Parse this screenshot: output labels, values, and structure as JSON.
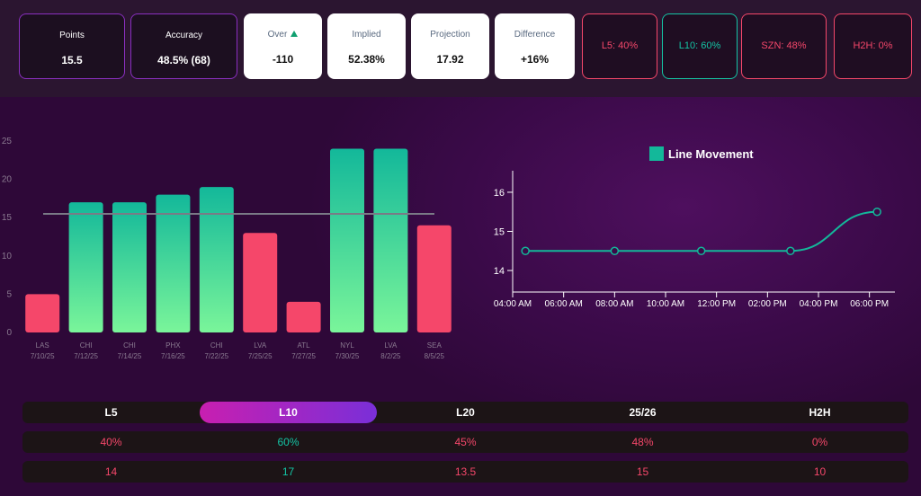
{
  "cards": [
    {
      "label": "Points",
      "value": "15.5",
      "style": "dark"
    },
    {
      "label": "Accuracy",
      "value": "48.5% (68)",
      "style": "dark"
    },
    {
      "label": "Over",
      "value": "-110",
      "style": "light"
    },
    {
      "label": "Implied",
      "value": "52.38%",
      "style": "light"
    },
    {
      "label": "Projection",
      "value": "17.92",
      "style": "light"
    },
    {
      "label": "Difference",
      "value": "+16%",
      "style": "light"
    },
    {
      "label": "L5: 40%",
      "color": "#f5476a"
    },
    {
      "label": "L10: 60%",
      "color": "#14c4a4"
    },
    {
      "label": "SZN: 48%",
      "color": "#f5476a"
    },
    {
      "label": "H2H: 0%",
      "color": "#f5476a"
    }
  ],
  "chart_data": [
    {
      "type": "bar",
      "categories": [
        "LAS",
        "CHI",
        "CHI",
        "PHX",
        "CHI",
        "LVA",
        "ATL",
        "NYL",
        "LVA",
        "SEA"
      ],
      "dates": [
        "7/10/25",
        "7/12/25",
        "7/14/25",
        "7/16/25",
        "7/22/25",
        "7/25/25",
        "7/27/25",
        "7/30/25",
        "8/2/25",
        "8/5/25"
      ],
      "values": [
        5,
        17,
        17,
        18,
        19,
        13,
        4,
        24,
        24,
        14
      ],
      "reference_line": 15.5,
      "color_over": "#13b89a",
      "color_under": "#f5476a",
      "ylim": [
        0,
        25
      ],
      "yticks": [
        0,
        5,
        10,
        15,
        20,
        25
      ]
    },
    {
      "type": "line",
      "series": [
        {
          "name": "Line Movement",
          "color": "#13b89a",
          "x": [
            4.5,
            8,
            11.4,
            14.9,
            18.3
          ],
          "values": [
            14.5,
            14.5,
            14.5,
            14.5,
            15.5
          ]
        }
      ],
      "xlim": [
        4,
        19
      ],
      "xticks": [
        {
          "value": 4,
          "label": "04:00 AM"
        },
        {
          "value": 6,
          "label": "06:00 AM"
        },
        {
          "value": 8,
          "label": "08:00 AM"
        },
        {
          "value": 10,
          "label": "10:00 AM"
        },
        {
          "value": 12,
          "label": "12:00 PM"
        },
        {
          "value": 14,
          "label": "02:00 PM"
        },
        {
          "value": 16,
          "label": "04:00 PM"
        },
        {
          "value": 18,
          "label": "06:00 PM"
        }
      ],
      "ylim": [
        13.45,
        16.55
      ],
      "yticks": [
        14,
        15,
        16
      ]
    }
  ],
  "table": {
    "active": 1,
    "columns": [
      {
        "label": "L5",
        "color": "#f5476a"
      },
      {
        "label": "L10",
        "color": "#14c4a4"
      },
      {
        "label": "L20",
        "color": "#f5476a"
      },
      {
        "label": "25/26",
        "color": "#f5476a"
      },
      {
        "label": "H2H",
        "color": "#f5476a"
      }
    ],
    "rows": [
      [
        "40%",
        "60%",
        "45%",
        "48%",
        "0%"
      ],
      [
        "14",
        "17",
        "13.5",
        "15",
        "10"
      ]
    ]
  }
}
